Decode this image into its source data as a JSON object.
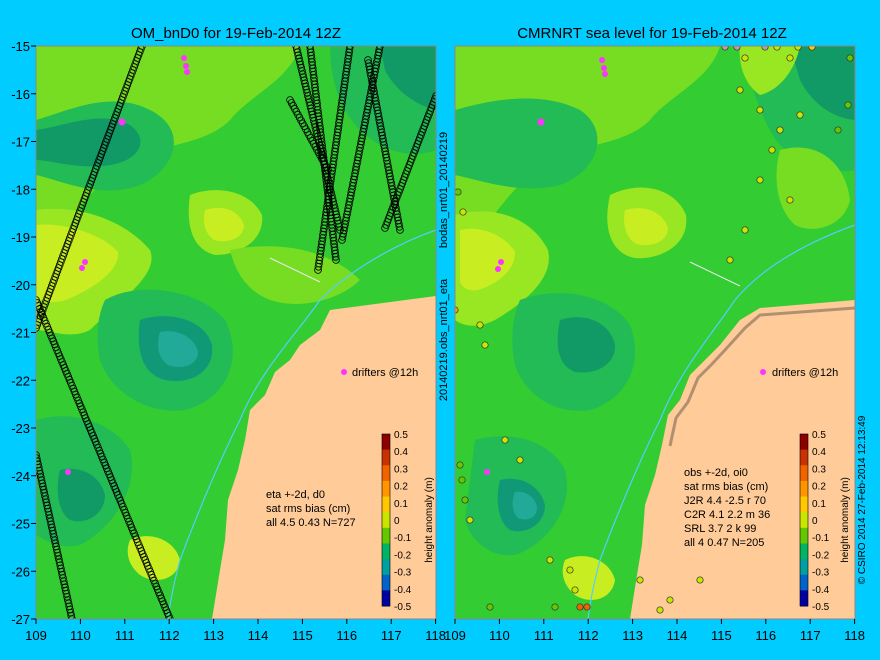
{
  "left_panel": {
    "title": "OM_bnD0 for 19-Feb-2014 12Z",
    "drifters_label": "drifters @12h",
    "stats": [
      "eta +-2d, d0",
      "sat rms bias (cm)",
      "all 4.5 0.43 N=727"
    ]
  },
  "right_panel": {
    "title": "CMRNRT sea level  for 19-Feb-2014 12Z",
    "drifters_label": "drifters @12h",
    "stats": [
      "obs +-2d, oi0",
      "sat rms bias (cm)",
      "J2R   4.4 -2.5 r 70",
      "C2R   4.1 2.2 m 36",
      "SRL    3.7 2 k 99",
      "all    4 0.47 N=205"
    ]
  },
  "middle_labels": {
    "top": "bodas_nrt01_20140219",
    "bottom": "20140219.obs_nrt01_eta"
  },
  "credit": "© CSIRO 2014   27-Feb-2014 12:13:49",
  "colorbar": {
    "label": "height anomaly (m)",
    "ticks": [
      "0.5",
      "0.4",
      "0.3",
      "0.2",
      "0.1",
      "0",
      "-0.1",
      "-0.2",
      "-0.3",
      "-0.4",
      "-0.5"
    ],
    "colors": [
      "#8c0000",
      "#c83200",
      "#f06400",
      "#ff9600",
      "#ffc800",
      "#c8e600",
      "#64c800",
      "#00b464",
      "#00a0a0",
      "#0064c8",
      "#0000a0"
    ]
  },
  "axes": {
    "lon_ticks": [
      "109",
      "110",
      "111",
      "112",
      "113",
      "114",
      "115",
      "116",
      "117",
      "118"
    ],
    "lat_ticks": [
      "-15",
      "-16",
      "-17",
      "-18",
      "-19",
      "-20",
      "-21",
      "-22",
      "-23",
      "-24",
      "-25",
      "-26",
      "-27"
    ]
  },
  "colors": {
    "background": "#00ccff",
    "land": "#ffcc99",
    "sea_base": "#33cc33",
    "drifter": "#ff33ff",
    "bathymetry_line": "#55ccff"
  }
}
